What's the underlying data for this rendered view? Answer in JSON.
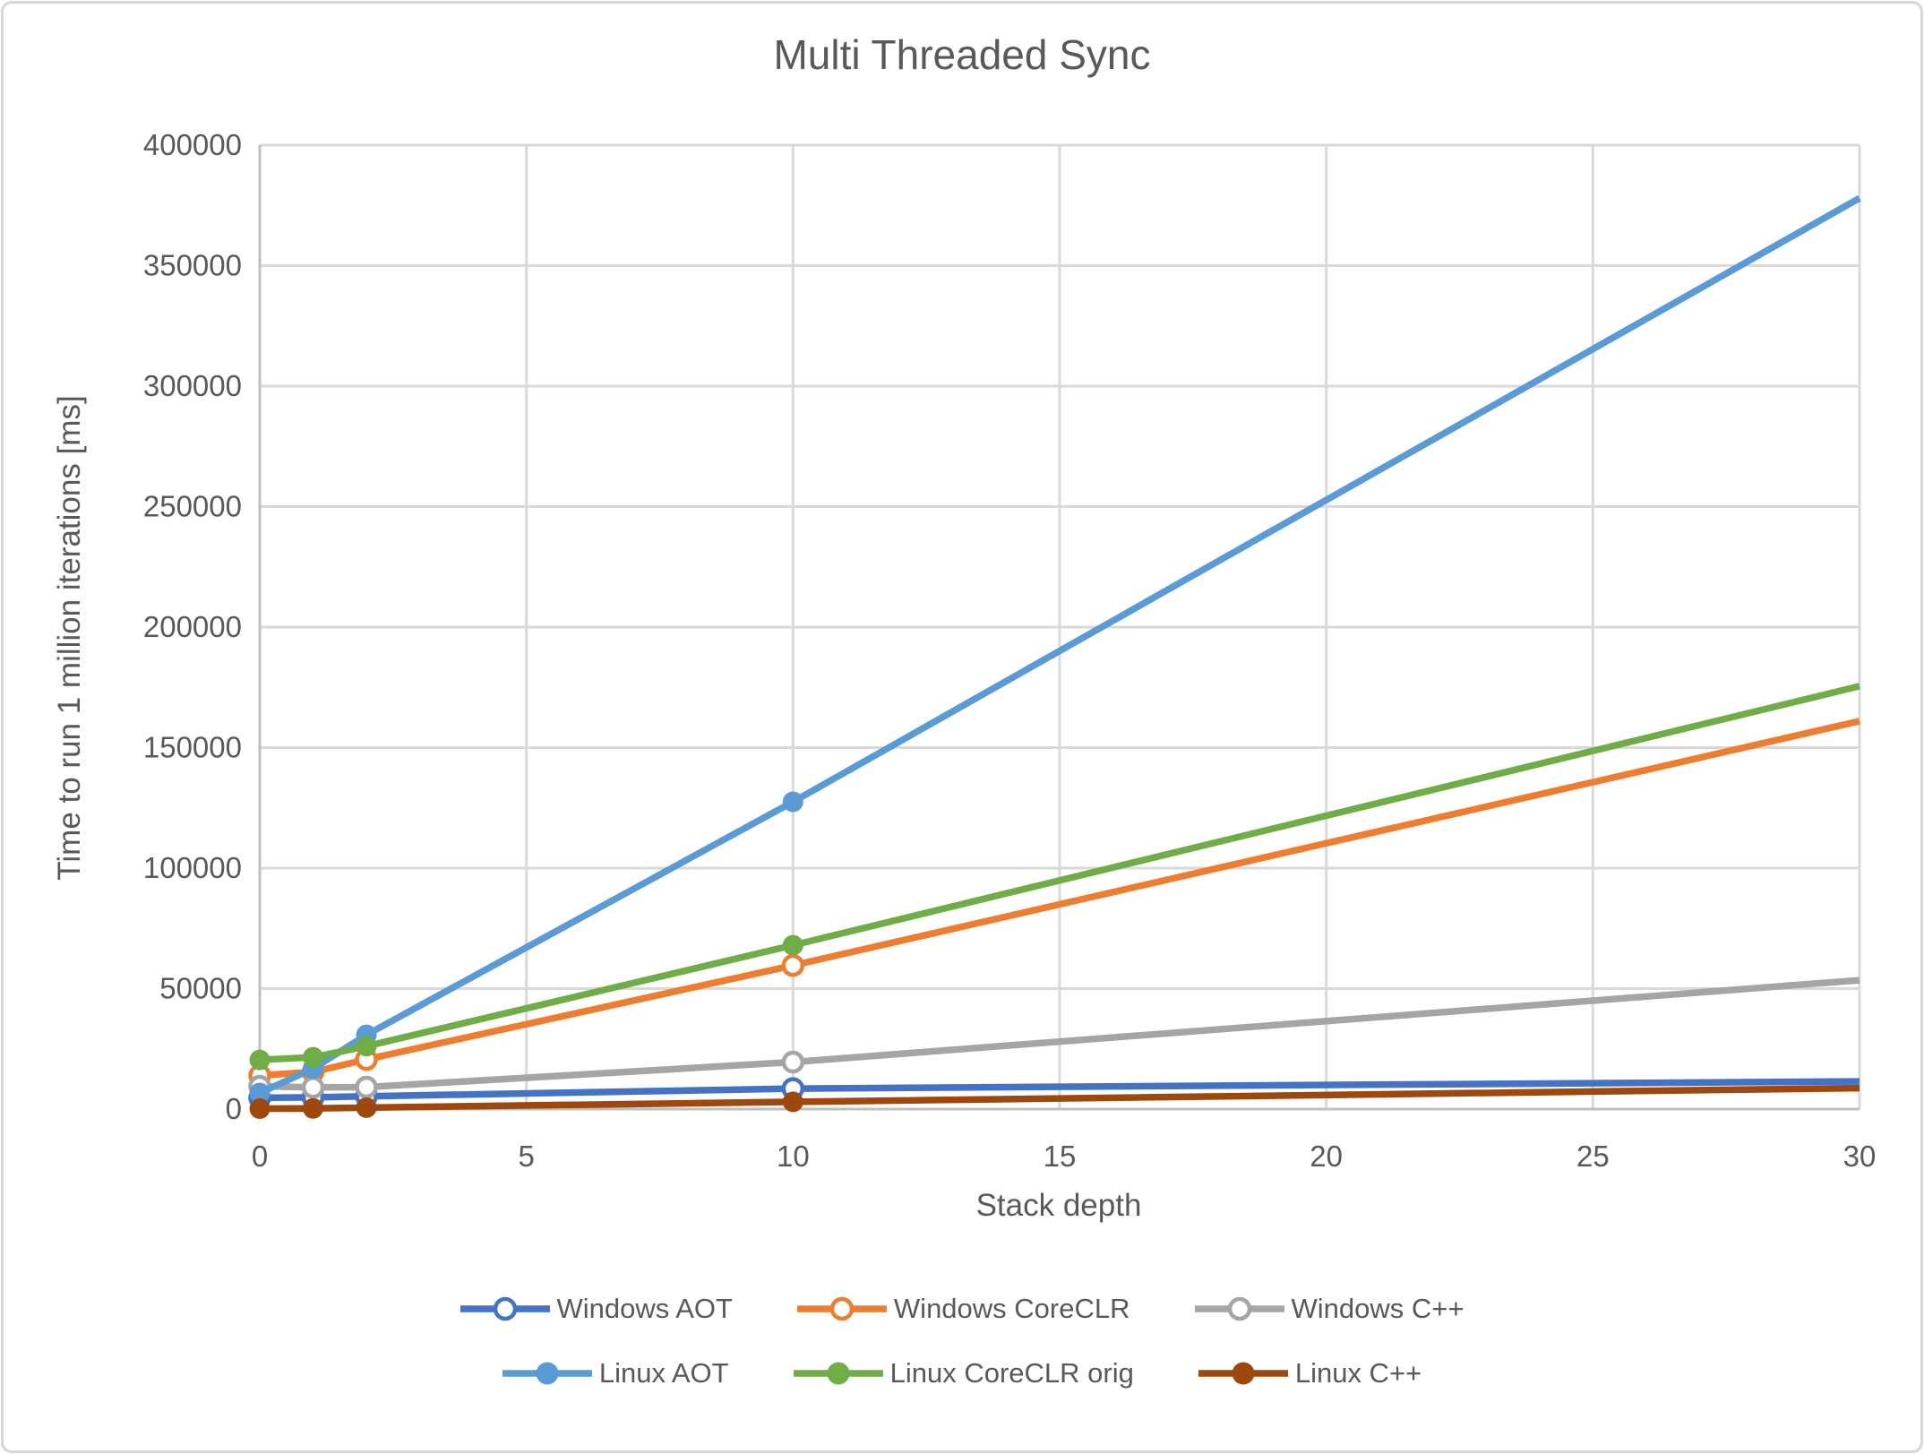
{
  "page": {
    "background_color": "#FFFFFF",
    "border_color": "#D6D6D6",
    "text_color": "#595959",
    "gridline_color": "#D9D9D9",
    "axis_line_color": "#BFBFBF"
  },
  "chart_data": {
    "type": "line",
    "title": "Multi Threaded Sync",
    "xlabel": "Stack depth",
    "ylabel": "Time to run 1 million iterations [ms]",
    "x": [
      0,
      1,
      2,
      10,
      30
    ],
    "xlim": [
      0,
      30
    ],
    "ylim": [
      0,
      400000
    ],
    "xticks": [
      0,
      5,
      10,
      15,
      20,
      25,
      30
    ],
    "yticks": [
      0,
      50000,
      100000,
      150000,
      200000,
      250000,
      300000,
      350000,
      400000
    ],
    "grid": true,
    "legend_position": "bottom",
    "legend_rows": 2,
    "series": [
      {
        "name": "Windows AOT",
        "color": "#4472C4",
        "marker": "open",
        "values": [
          4700,
          4900,
          5300,
          8500,
          11500
        ]
      },
      {
        "name": "Windows CoreCLR",
        "color": "#ED7D31",
        "marker": "open",
        "values": [
          14000,
          15400,
          20600,
          59600,
          161000
        ]
      },
      {
        "name": "Windows C++",
        "color": "#A5A5A5",
        "marker": "open",
        "values": [
          9500,
          9000,
          9100,
          19500,
          53500
        ]
      },
      {
        "name": "Linux AOT",
        "color": "#5B9BD5",
        "marker": "filled",
        "values": [
          6700,
          16800,
          30800,
          127500,
          378000
        ]
      },
      {
        "name": "Linux CoreCLR orig",
        "color": "#70AD47",
        "marker": "filled",
        "values": [
          20400,
          21500,
          26100,
          68000,
          175500
        ]
      },
      {
        "name": "Linux C++",
        "color": "#9E480E",
        "marker": "filled",
        "values": [
          200,
          300,
          600,
          3000,
          8700
        ]
      }
    ]
  }
}
